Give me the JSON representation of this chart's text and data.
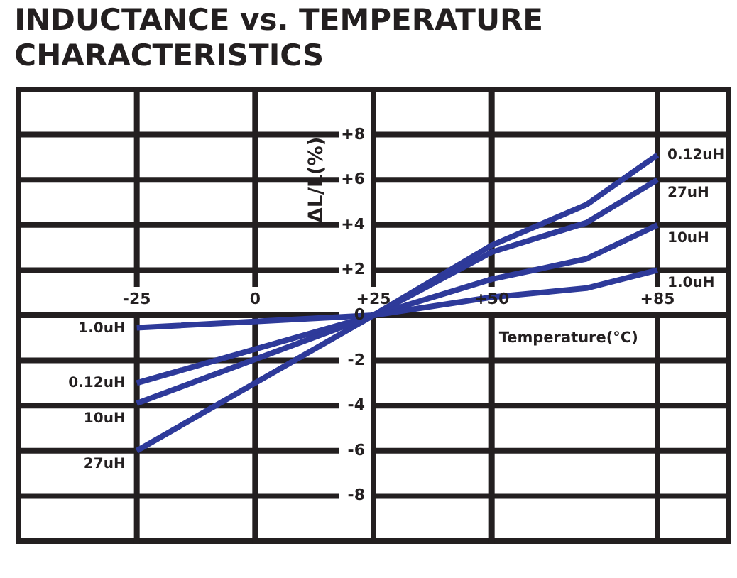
{
  "chart_data": {
    "type": "line",
    "title": "INDUCTANCE vs. TEMPERATURE CHARACTERISTICS",
    "xlabel": "Temperature(°C)",
    "ylabel": "ΔL/L(%)",
    "x": [
      -25,
      25,
      50,
      70,
      85
    ],
    "series": [
      {
        "name": "0.12uH",
        "color": "#2e3a9a",
        "values": [
          -3.0,
          0,
          3.1,
          4.9,
          7.1
        ]
      },
      {
        "name": "27uH",
        "color": "#2e3a9a",
        "values": [
          -6.0,
          0,
          2.8,
          4.1,
          6.0
        ]
      },
      {
        "name": "10uH",
        "color": "#2e3a9a",
        "values": [
          -3.9,
          0,
          1.6,
          2.5,
          4.0
        ]
      },
      {
        "name": "1.0uH",
        "color": "#2e3a9a",
        "values": [
          -0.55,
          0,
          0.8,
          1.2,
          2.0
        ]
      }
    ],
    "xlim": [
      -50,
      100
    ],
    "xticks": [
      {
        "value": -25,
        "label": "-25"
      },
      {
        "value": 0,
        "label": "0"
      },
      {
        "value": 25,
        "label": "+25"
      },
      {
        "value": 50,
        "label": "+50"
      },
      {
        "value": 85,
        "label": "+85"
      }
    ],
    "ylim": [
      -10,
      10
    ],
    "yticks": [
      {
        "value": -8,
        "label": "-8"
      },
      {
        "value": -6,
        "label": "-6"
      },
      {
        "value": -4,
        "label": "-4"
      },
      {
        "value": -2,
        "label": "-2"
      },
      {
        "value": 0,
        "label": "0"
      },
      {
        "value": 2,
        "label": "+2"
      },
      {
        "value": 4,
        "label": "+4"
      },
      {
        "value": 6,
        "label": "+6"
      },
      {
        "value": 8,
        "label": "+8"
      }
    ],
    "grid": true,
    "legend": false,
    "marker": "none",
    "line_style": "solid"
  }
}
